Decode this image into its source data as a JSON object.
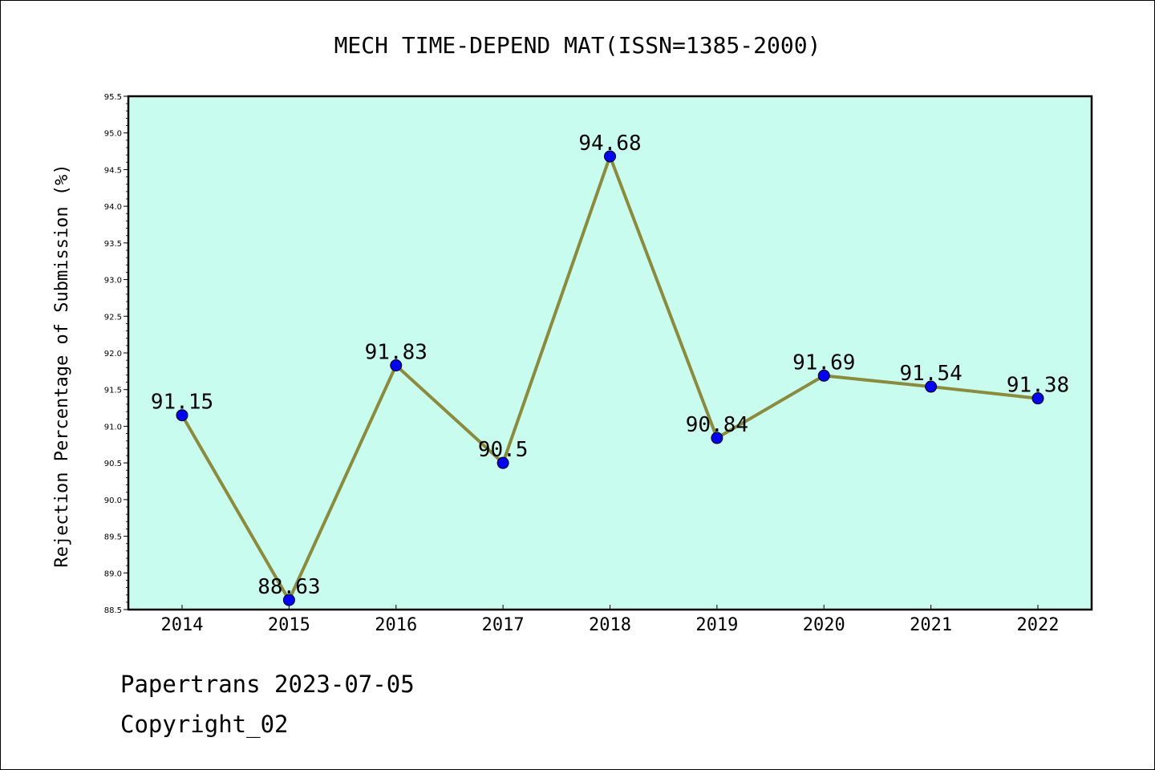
{
  "chart_data": {
    "type": "line",
    "title": "MECH TIME-DEPEND MAT(ISSN=1385-2000)",
    "xlabel": "",
    "ylabel": "Rejection Percentage of Submission (%)",
    "categories": [
      "2014",
      "2015",
      "2016",
      "2017",
      "2018",
      "2019",
      "2020",
      "2021",
      "2022"
    ],
    "series": [
      {
        "values": [
          91.15,
          88.63,
          91.83,
          90.5,
          94.68,
          90.84,
          91.69,
          91.54,
          91.38
        ]
      }
    ],
    "data_labels": [
      "91.15",
      "88.63",
      "91.83",
      "90.5",
      "94.68",
      "90.84",
      "91.69",
      "91.54",
      "91.38"
    ],
    "ylim": [
      88.5,
      95.5
    ],
    "yticks": [
      "88.5",
      "89.0",
      "89.5",
      "90.0",
      "90.5",
      "91.0",
      "91.5",
      "92.0",
      "92.5",
      "93.0",
      "93.5",
      "94.0",
      "94.5",
      "95.0",
      "95.5"
    ],
    "grid": false,
    "legend": "none",
    "colors": {
      "plot_background": "#c8fcee",
      "line": "#8b8b3a",
      "marker": "#0000ff",
      "axis": "#000000"
    }
  },
  "footer": {
    "source": "Papertrans 2023-07-05",
    "copyright": "Copyright_02"
  }
}
